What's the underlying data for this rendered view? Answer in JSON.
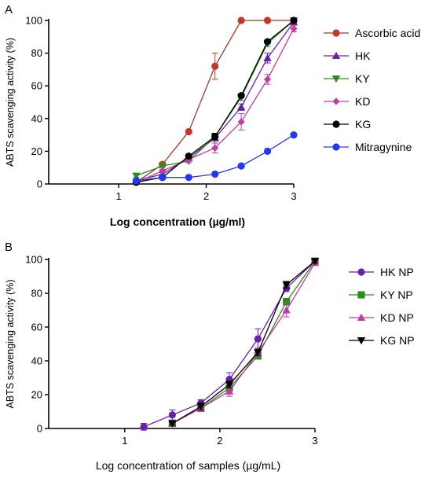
{
  "chart_data": [
    {
      "panel": "A",
      "type": "line",
      "xlabel": "Log concentration (µg/ml)",
      "ylabel": "ABTS scavenging activity (%)",
      "xlim": [
        0.2,
        3.0
      ],
      "ylim": [
        0,
        100
      ],
      "xticks": [
        1,
        2,
        3
      ],
      "yticks": [
        0,
        20,
        40,
        60,
        80,
        100
      ],
      "grid": false,
      "legend_position": "right",
      "series": [
        {
          "name": "Ascorbic acid",
          "color": "#c0392b",
          "line_color": "#9b3a2a",
          "marker": "circle",
          "x": [
            1.2,
            1.5,
            1.8,
            2.1,
            2.4,
            2.7,
            3.0
          ],
          "y": [
            1,
            12,
            32,
            72,
            100,
            100,
            100
          ],
          "err": [
            0,
            1,
            1,
            8,
            0,
            0,
            1
          ]
        },
        {
          "name": "HK",
          "color": "#6a1fa8",
          "line_color": "#6a1fa8",
          "marker": "triangle-up",
          "x": [
            1.2,
            1.5,
            1.8,
            2.1,
            2.4,
            2.7,
            3.0
          ],
          "y": [
            2,
            6,
            16,
            28,
            47,
            77,
            99
          ],
          "err": [
            1,
            1,
            2,
            3,
            2,
            3,
            1
          ]
        },
        {
          "name": "KY",
          "color": "#2e8b1e",
          "line_color": "#2e8b1e",
          "marker": "triangle-down",
          "x": [
            1.2,
            1.5,
            1.8,
            2.1,
            2.4,
            2.7,
            3.0
          ],
          "y": [
            5,
            11,
            14,
            29,
            53,
            86,
            100
          ],
          "err": [
            1,
            1,
            1,
            2,
            2,
            2,
            1
          ]
        },
        {
          "name": "KD",
          "color": "#c03aa8",
          "line_color": "#c03aa8",
          "marker": "diamond",
          "x": [
            1.2,
            1.5,
            1.8,
            2.1,
            2.4,
            2.7,
            3.0
          ],
          "y": [
            1,
            8,
            15,
            22,
            38,
            64,
            95
          ],
          "err": [
            1,
            1,
            2,
            3,
            5,
            3,
            2
          ]
        },
        {
          "name": "KG",
          "color": "#000000",
          "line_color": "#000000",
          "marker": "circle",
          "x": [
            1.2,
            1.5,
            1.8,
            2.1,
            2.4,
            2.7,
            3.0
          ],
          "y": [
            1,
            4,
            17,
            29,
            54,
            87,
            100
          ],
          "err": [
            0,
            1,
            1,
            2,
            1,
            1,
            1
          ]
        },
        {
          "name": "Mitragynine",
          "color": "#2438f0",
          "line_color": "#2438f0",
          "marker": "circle",
          "x": [
            1.2,
            1.5,
            1.8,
            2.1,
            2.4,
            2.7,
            3.0
          ],
          "y": [
            2,
            4,
            4,
            6,
            11,
            20,
            30
          ],
          "err": [
            0,
            0,
            0,
            0,
            1,
            1,
            1
          ]
        }
      ]
    },
    {
      "panel": "B",
      "type": "line",
      "xlabel": "Log concentration of samples (µg/mL)",
      "ylabel": "ABTS scavenging activity (%)",
      "xlim": [
        0.2,
        3.0
      ],
      "ylim": [
        0,
        100
      ],
      "xticks": [
        1,
        2,
        3
      ],
      "yticks": [
        0,
        20,
        40,
        60,
        80,
        100
      ],
      "grid": false,
      "legend_position": "right",
      "series": [
        {
          "name": "HK NP",
          "color": "#6a1fa8",
          "line_color": "#6a1fa8",
          "marker": "circle",
          "x": [
            1.2,
            1.5,
            1.8,
            2.1,
            2.4,
            2.7,
            3.0
          ],
          "y": [
            1,
            8,
            15,
            29,
            53,
            83,
            99
          ],
          "err": [
            2,
            3,
            2,
            4,
            6,
            2,
            1
          ]
        },
        {
          "name": "KY NP",
          "color": "#2e8b1e",
          "line_color": "#2e8b1e",
          "marker": "square",
          "x": [
            1.5,
            1.8,
            2.1,
            2.4,
            2.7,
            3.0
          ],
          "y": [
            3,
            12,
            24,
            43,
            75,
            99
          ],
          "err": [
            1,
            2,
            3,
            2,
            2,
            1
          ]
        },
        {
          "name": "KD NP",
          "color": "#c03aa8",
          "line_color": "#c03aa8",
          "marker": "triangle-up",
          "x": [
            1.5,
            1.8,
            2.1,
            2.4,
            2.7,
            3.0
          ],
          "y": [
            3,
            12,
            22,
            45,
            70,
            98
          ],
          "err": [
            1,
            2,
            3,
            3,
            4,
            1
          ]
        },
        {
          "name": "KG NP",
          "color": "#000000",
          "line_color": "#000000",
          "marker": "triangle-down",
          "x": [
            1.5,
            1.8,
            2.1,
            2.4,
            2.7,
            3.0
          ],
          "y": [
            3,
            13,
            26,
            45,
            85,
            99
          ],
          "err": [
            1,
            2,
            2,
            2,
            2,
            1
          ]
        }
      ]
    }
  ]
}
